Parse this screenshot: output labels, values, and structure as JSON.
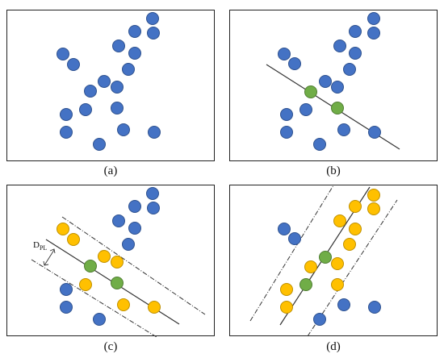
{
  "captions": {
    "a": "(a)",
    "b": "(b)",
    "c": "(c)",
    "d": "(d)"
  },
  "distance_label": {
    "main": "D",
    "sub": "PL"
  },
  "colors": {
    "blue_fill": "#4472C4",
    "blue_stroke": "#2F528F",
    "green_fill": "#70AD47",
    "green_stroke": "#507E32",
    "yellow_fill": "#FFC000",
    "yellow_stroke": "#BF9000",
    "line": "#333333"
  }
}
